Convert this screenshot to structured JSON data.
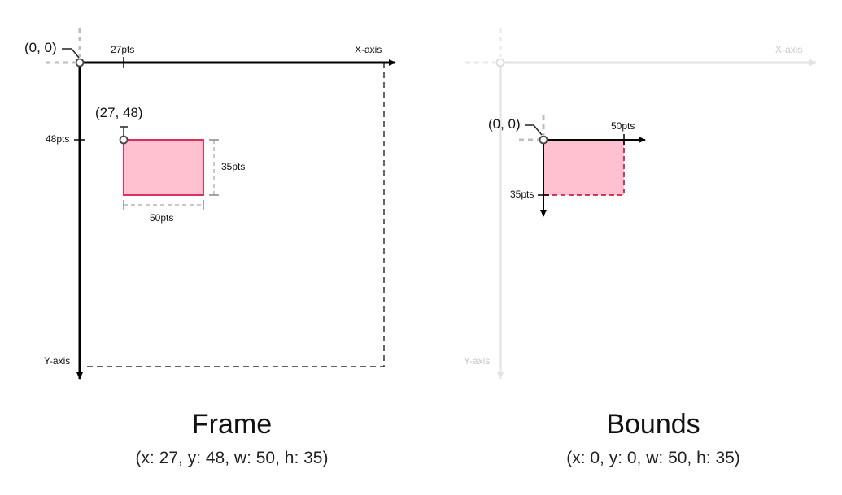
{
  "frame_panel": {
    "origin_label": "(0, 0)",
    "x_axis_label": "X-axis",
    "y_axis_label": "Y-axis",
    "x_offset_label": "27pts",
    "y_offset_label": "48pts",
    "rect_origin_label": "(27, 48)",
    "height_label": "35pts",
    "width_label": "50pts",
    "title": "Frame",
    "subtitle": "(x: 27, y: 48, w: 50, h: 35)"
  },
  "bounds_panel": {
    "origin_label": "(0, 0)",
    "x_axis_label": "X-axis",
    "y_axis_label": "Y-axis",
    "width_label": "50pts",
    "height_label": "35pts",
    "title": "Bounds",
    "subtitle": "(x: 0, y: 0, w: 50, h: 35)"
  },
  "colors": {
    "rect_fill": "#ffc0cf",
    "rect_stroke": "#d81b4f",
    "axis": "#000000",
    "faded_axis": "#e2e2e2",
    "dashed_guide": "#b5b5b5"
  }
}
